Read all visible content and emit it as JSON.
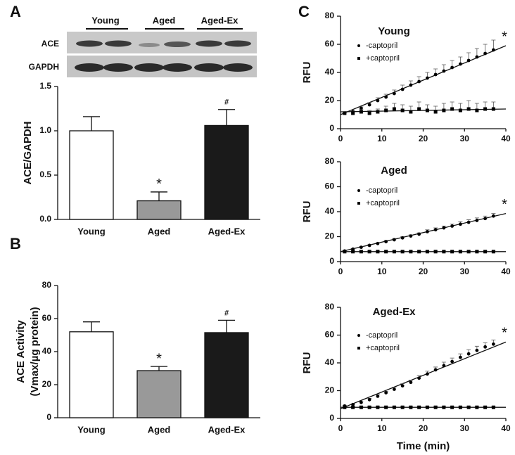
{
  "panels": [
    "A",
    "B",
    "C"
  ],
  "blot": {
    "groups": [
      "Young",
      "Aged",
      "Aged-Ex"
    ],
    "rows": [
      "ACE",
      "GAPDH"
    ]
  },
  "chart_data": [
    {
      "type": "bar",
      "ylabel": "ACE/GAPDH",
      "categories": [
        "Young",
        "Aged",
        "Aged-Ex"
      ],
      "values": [
        1.0,
        0.21,
        1.06
      ],
      "errors": [
        0.16,
        0.1,
        0.18
      ],
      "colors": [
        "#ffffff",
        "#999999",
        "#1a1a1a"
      ],
      "annotations": [
        null,
        "*",
        "#"
      ],
      "ylim": [
        0,
        1.5
      ],
      "yticks": [
        {
          "value": 0,
          "label": "0.0"
        },
        {
          "value": 0.5,
          "label": "0.5"
        },
        {
          "value": 1,
          "label": "1.0"
        },
        {
          "value": 1.5,
          "label": "1.5"
        }
      ]
    },
    {
      "type": "bar",
      "ylabel": [
        "ACE Activity",
        "(Vmax/µg protein)"
      ],
      "categories": [
        "Young",
        "Aged",
        "Aged-Ex"
      ],
      "values": [
        52,
        28.5,
        51.5
      ],
      "errors": [
        6,
        2.5,
        7.5
      ],
      "colors": [
        "#ffffff",
        "#999999",
        "#1a1a1a"
      ],
      "annotations": [
        null,
        "*",
        "#"
      ],
      "ylim": [
        0,
        80
      ],
      "yticks": [
        0,
        20,
        40,
        60,
        80
      ]
    },
    {
      "type": "scatter",
      "title": "Young",
      "ylabel": "RFU",
      "annotation": "*",
      "x": [
        1,
        3,
        5,
        7,
        9,
        11,
        13,
        15,
        17,
        19,
        21,
        23,
        25,
        27,
        29,
        31,
        33,
        35,
        37
      ],
      "xlim": [
        0,
        40
      ],
      "xticks": [
        0,
        10,
        20,
        30,
        40
      ],
      "ylim": [
        0,
        80
      ],
      "yticks": [
        0,
        20,
        40,
        60,
        80
      ],
      "series": [
        {
          "name": "-captopril",
          "marker": "circle",
          "color": "#000000",
          "values": [
            11,
            12,
            14.5,
            17,
            20,
            22.5,
            25,
            28,
            31,
            33.5,
            36,
            38.5,
            41,
            43.5,
            46,
            48.5,
            51,
            53.5,
            56
          ],
          "errors": [
            0.5,
            1,
            1,
            1.5,
            2,
            2,
            2.5,
            3,
            3,
            3.5,
            4,
            4,
            4.5,
            5,
            5,
            5.5,
            6,
            6.5,
            7
          ],
          "fit_x": [
            0,
            40
          ],
          "fit": [
            10,
            59
          ]
        },
        {
          "name": "+captopril",
          "marker": "square",
          "color": "#000000",
          "values": [
            11,
            11,
            12,
            11,
            12,
            13,
            14,
            13,
            12,
            14,
            13,
            12,
            13,
            14,
            13,
            14,
            13,
            14,
            14
          ],
          "errors": [
            1,
            1,
            1.5,
            2,
            2,
            3,
            4,
            4,
            4,
            5,
            4,
            4,
            5,
            5,
            5,
            6,
            5,
            5,
            5
          ],
          "fit_x": [
            0,
            40
          ],
          "fit": [
            12,
            14
          ]
        }
      ]
    },
    {
      "type": "scatter",
      "title": "Aged",
      "ylabel": "RFU",
      "annotation": "*",
      "x": [
        1,
        3,
        5,
        7,
        9,
        11,
        13,
        15,
        17,
        19,
        21,
        23,
        25,
        27,
        29,
        31,
        33,
        35,
        37
      ],
      "xlim": [
        0,
        40
      ],
      "xticks": [
        0,
        10,
        20,
        30,
        40
      ],
      "ylim": [
        0,
        80
      ],
      "yticks": [
        0,
        20,
        40,
        60,
        80
      ],
      "series": [
        {
          "name": "-captopril",
          "marker": "circle",
          "color": "#000000",
          "values": [
            8.5,
            10,
            11.5,
            13,
            14.5,
            16,
            17.5,
            19,
            20.5,
            22,
            24,
            25.5,
            27,
            28.5,
            30,
            31.5,
            33,
            34.5,
            36.5
          ],
          "errors": [
            0.5,
            0.5,
            0.5,
            0.5,
            0.5,
            1,
            1,
            1,
            1,
            1,
            1.5,
            1.5,
            1.5,
            1.5,
            2,
            2,
            2,
            2,
            2
          ],
          "fit_x": [
            0,
            40
          ],
          "fit": [
            8,
            38.5
          ]
        },
        {
          "name": "+captopril",
          "marker": "square",
          "color": "#000000",
          "values": [
            8,
            8,
            8,
            8,
            8,
            8,
            8,
            8,
            8,
            8,
            8,
            8,
            8,
            8,
            8,
            8,
            8,
            8,
            8
          ],
          "errors": [
            0.5,
            0.5,
            0.5,
            0.5,
            0.5,
            0.5,
            0.5,
            0.5,
            0.5,
            0.5,
            0.5,
            0.5,
            0.5,
            0.5,
            0.5,
            0.5,
            0.5,
            0.5,
            0.5
          ],
          "fit_x": [
            0,
            40
          ],
          "fit": [
            8,
            8
          ]
        }
      ]
    },
    {
      "type": "scatter",
      "title": "Aged-Ex",
      "ylabel": "RFU",
      "xlabel": "Time (min)",
      "annotation": "*",
      "x": [
        1,
        3,
        5,
        7,
        9,
        11,
        13,
        15,
        17,
        19,
        21,
        23,
        25,
        27,
        29,
        31,
        33,
        35,
        37
      ],
      "xlim": [
        0,
        40
      ],
      "xticks": [
        0,
        10,
        20,
        30,
        40
      ],
      "ylim": [
        0,
        80
      ],
      "yticks": [
        0,
        20,
        40,
        60,
        80
      ],
      "series": [
        {
          "name": "-captopril",
          "marker": "circle",
          "color": "#000000",
          "values": [
            9,
            10,
            11.5,
            13.5,
            16,
            18.5,
            21,
            23.5,
            26,
            29,
            32,
            35,
            38,
            41,
            44,
            46.5,
            49,
            51.5,
            53.5
          ],
          "errors": [
            0.5,
            0.5,
            0.5,
            1,
            1,
            1,
            1.5,
            1.5,
            1.5,
            2,
            2,
            2,
            2.5,
            2.5,
            2.5,
            3,
            3,
            3,
            3
          ],
          "fit_x": [
            0,
            40
          ],
          "fit": [
            7,
            55
          ]
        },
        {
          "name": "+captopril",
          "marker": "square",
          "color": "#000000",
          "values": [
            8,
            8,
            8,
            8,
            8,
            8,
            8,
            8,
            8,
            8,
            8,
            8,
            8,
            8,
            8,
            8,
            8,
            8,
            8
          ],
          "errors": [
            0.5,
            0.5,
            0.5,
            0.5,
            0.5,
            0.5,
            0.5,
            0.5,
            0.5,
            0.5,
            0.5,
            0.5,
            0.5,
            0.5,
            0.5,
            0.5,
            0.5,
            0.5,
            0.5
          ],
          "fit_x": [
            0,
            40
          ],
          "fit": [
            8,
            8
          ]
        }
      ]
    }
  ]
}
